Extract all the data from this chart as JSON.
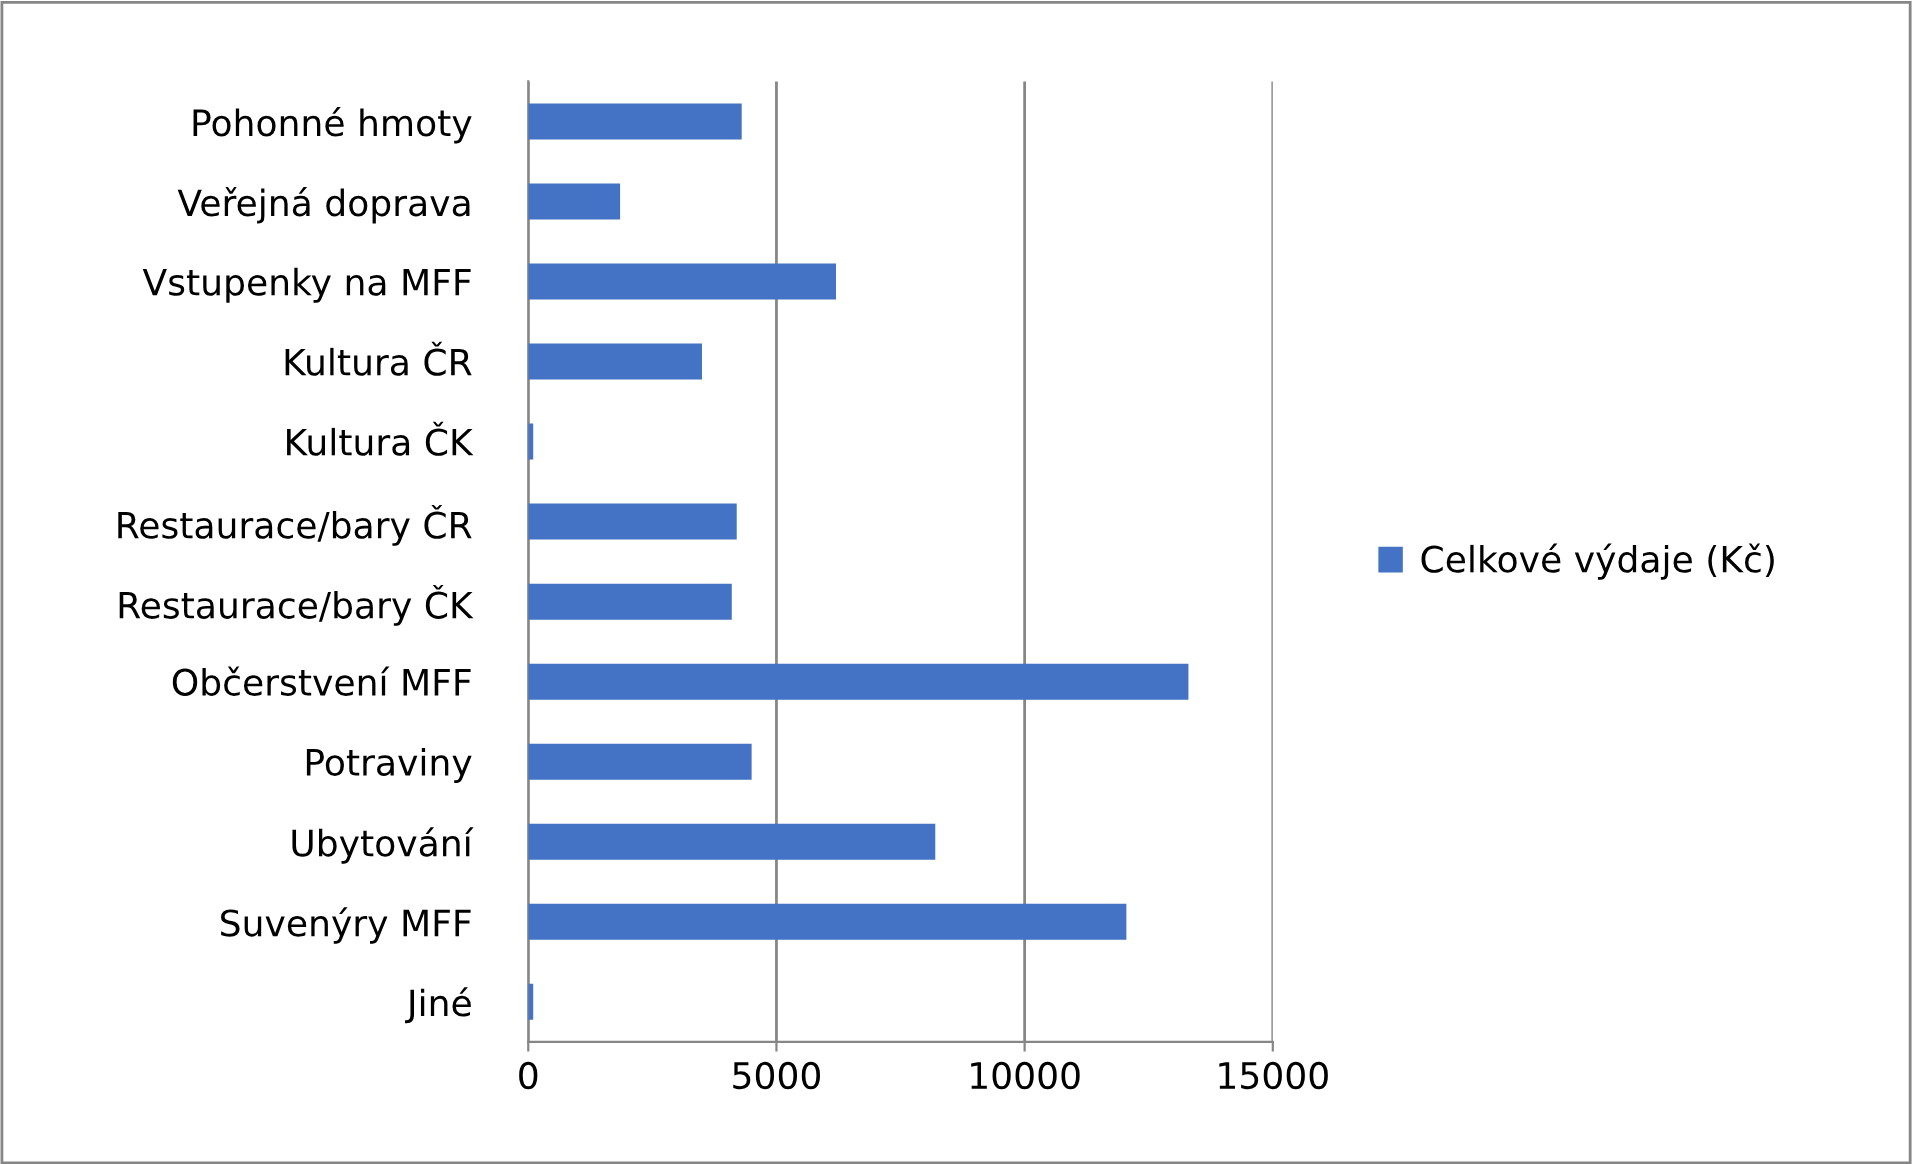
{
  "chart_data": {
    "type": "bar",
    "orientation": "horizontal",
    "categories": [
      "Pohonné hmoty",
      "Veřejná doprava",
      "Vstupenky na MFF",
      "Kultura ČR",
      "Kultura ČK",
      "Restaurace/bary ČR",
      "Restaurace/bary ČK",
      "Občerstvení MFF",
      "Potraviny",
      "Ubytování",
      "Suvenýry MFF",
      "Jiné"
    ],
    "series": [
      {
        "name": "Celkové výdaje (Kč)",
        "color": "#4472c4",
        "values": [
          4300,
          1850,
          6200,
          3500,
          100,
          4200,
          4100,
          13300,
          4500,
          8200,
          12050,
          100
        ]
      }
    ],
    "xlim": [
      0,
      15000
    ],
    "xticks": [
      0,
      5000,
      10000,
      15000
    ],
    "grid": "x",
    "legend": "right"
  }
}
